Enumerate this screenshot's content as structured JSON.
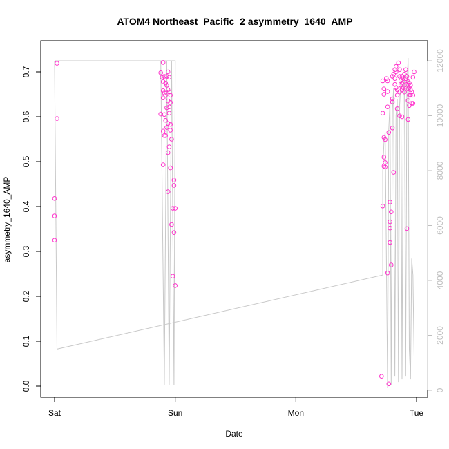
{
  "chart_data": {
    "type": "scatter",
    "title": "ATOM4 Northeast_Pacific_2 asymmetry_1640_AMP",
    "xlabel": "Date",
    "ylabel": "asymmetry_1640_AMP",
    "x_ticks": [
      "Sat",
      "Sun",
      "Mon",
      "Tue"
    ],
    "xlim": [
      0,
      3.0
    ],
    "ylim": [
      0,
      0.72
    ],
    "y_ticks": [
      "0.0",
      "0.1",
      "0.2",
      "0.3",
      "0.4",
      "0.5",
      "0.6",
      "0.7"
    ],
    "y2lim": [
      0,
      12000
    ],
    "y2_ticks": [
      "0",
      "2000",
      "4000",
      "6000",
      "8000",
      "10000",
      "12000"
    ],
    "colors": {
      "points": "#ff33cc",
      "line": "#c8c8c8",
      "right_axis": "#bfbfbf"
    },
    "series": [
      {
        "type": "points",
        "values": [
          [
            0.0,
            0.418
          ],
          [
            0.0,
            0.379
          ],
          [
            0.0,
            0.325
          ],
          [
            0.02,
            0.596
          ],
          [
            0.02,
            0.719
          ],
          [
            0.9,
            0.721
          ],
          [
            0.88,
            0.698
          ],
          [
            0.89,
            0.688
          ],
          [
            0.9,
            0.678
          ],
          [
            0.91,
            0.69
          ],
          [
            0.92,
            0.675
          ],
          [
            0.93,
            0.69
          ],
          [
            0.94,
            0.7
          ],
          [
            0.95,
            0.688
          ],
          [
            0.93,
            0.67
          ],
          [
            0.94,
            0.66
          ],
          [
            0.9,
            0.658
          ],
          [
            0.91,
            0.653
          ],
          [
            0.92,
            0.648
          ],
          [
            0.9,
            0.642
          ],
          [
            0.95,
            0.655
          ],
          [
            0.96,
            0.648
          ],
          [
            0.94,
            0.635
          ],
          [
            0.96,
            0.632
          ],
          [
            0.93,
            0.62
          ],
          [
            0.95,
            0.622
          ],
          [
            0.88,
            0.606
          ],
          [
            0.91,
            0.605
          ],
          [
            0.95,
            0.608
          ],
          [
            0.92,
            0.592
          ],
          [
            0.94,
            0.585
          ],
          [
            0.96,
            0.583
          ],
          [
            0.93,
            0.576
          ],
          [
            0.96,
            0.57
          ],
          [
            0.9,
            0.568
          ],
          [
            0.91,
            0.558
          ],
          [
            0.92,
            0.558
          ],
          [
            0.97,
            0.55
          ],
          [
            0.95,
            0.533
          ],
          [
            0.94,
            0.52
          ],
          [
            0.9,
            0.493
          ],
          [
            0.96,
            0.486
          ],
          [
            0.99,
            0.459
          ],
          [
            0.99,
            0.447
          ],
          [
            0.94,
            0.433
          ],
          [
            0.98,
            0.396
          ],
          [
            1.0,
            0.396
          ],
          [
            0.97,
            0.36
          ],
          [
            0.99,
            0.342
          ],
          [
            0.98,
            0.245
          ],
          [
            1.0,
            0.224
          ],
          [
            2.71,
            0.022
          ],
          [
            2.72,
            0.401
          ],
          [
            2.72,
            0.68
          ],
          [
            2.73,
            0.662
          ],
          [
            2.73,
            0.65
          ],
          [
            2.72,
            0.608
          ],
          [
            2.73,
            0.554
          ],
          [
            2.74,
            0.549
          ],
          [
            2.73,
            0.51
          ],
          [
            2.74,
            0.498
          ],
          [
            2.73,
            0.49
          ],
          [
            2.74,
            0.488
          ],
          [
            2.75,
            0.685
          ],
          [
            2.76,
            0.68
          ],
          [
            2.76,
            0.656
          ],
          [
            2.76,
            0.622
          ],
          [
            2.77,
            0.565
          ],
          [
            2.76,
            0.252
          ],
          [
            2.78,
            0.41
          ],
          [
            2.78,
            0.366
          ],
          [
            2.78,
            0.352
          ],
          [
            2.79,
            0.388
          ],
          [
            2.78,
            0.32
          ],
          [
            2.79,
            0.27
          ],
          [
            2.77,
            0.005
          ],
          [
            2.8,
            0.64
          ],
          [
            2.8,
            0.633
          ],
          [
            2.8,
            0.575
          ],
          [
            2.81,
            0.476
          ],
          [
            2.8,
            0.69
          ],
          [
            2.81,
            0.695
          ],
          [
            2.82,
            0.705
          ],
          [
            2.83,
            0.712
          ],
          [
            2.83,
            0.7
          ],
          [
            2.82,
            0.685
          ],
          [
            2.82,
            0.672
          ],
          [
            2.83,
            0.665
          ],
          [
            2.84,
            0.66
          ],
          [
            2.84,
            0.648
          ],
          [
            2.84,
            0.618
          ],
          [
            2.85,
            0.72
          ],
          [
            2.86,
            0.705
          ],
          [
            2.86,
            0.69
          ],
          [
            2.87,
            0.68
          ],
          [
            2.87,
            0.67
          ],
          [
            2.86,
            0.655
          ],
          [
            2.86,
            0.602
          ],
          [
            2.88,
            0.69
          ],
          [
            2.88,
            0.675
          ],
          [
            2.89,
            0.685
          ],
          [
            2.89,
            0.665
          ],
          [
            2.88,
            0.66
          ],
          [
            2.9,
            0.67
          ],
          [
            2.9,
            0.695
          ],
          [
            2.9,
            0.655
          ],
          [
            2.88,
            0.6
          ],
          [
            2.91,
            0.705
          ],
          [
            2.91,
            0.685
          ],
          [
            2.92,
            0.69
          ],
          [
            2.93,
            0.678
          ],
          [
            2.92,
            0.672
          ],
          [
            2.93,
            0.662
          ],
          [
            2.93,
            0.636
          ],
          [
            2.94,
            0.625
          ],
          [
            2.93,
            0.594
          ],
          [
            2.92,
            0.351
          ],
          [
            2.94,
            0.675
          ],
          [
            2.94,
            0.665
          ],
          [
            2.95,
            0.67
          ],
          [
            2.95,
            0.66
          ],
          [
            2.96,
            0.655
          ],
          [
            2.94,
            0.648
          ],
          [
            2.95,
            0.648
          ],
          [
            2.96,
            0.63
          ],
          [
            2.97,
            0.63
          ],
          [
            2.97,
            0.648
          ],
          [
            2.97,
            0.688
          ],
          [
            2.98,
            0.7
          ]
        ]
      },
      {
        "type": "line",
        "axis": "right",
        "values": [
          [
            0.0,
            12000
          ],
          [
            0.02,
            1500
          ],
          [
            2.72,
            4200
          ],
          [
            2.72,
            8000
          ],
          [
            2.73,
            9000
          ],
          [
            2.74,
            9400
          ],
          [
            2.75,
            5000
          ],
          [
            2.76,
            100
          ],
          [
            2.77,
            9500
          ],
          [
            2.78,
            10500
          ],
          [
            2.79,
            200
          ],
          [
            2.8,
            10200
          ],
          [
            2.81,
            11000
          ],
          [
            2.82,
            500
          ],
          [
            2.83,
            10000
          ],
          [
            2.84,
            10600
          ],
          [
            2.85,
            300
          ],
          [
            2.86,
            10400
          ],
          [
            2.87,
            11300
          ],
          [
            2.88,
            400
          ],
          [
            2.89,
            10800
          ],
          [
            2.9,
            11500
          ],
          [
            2.91,
            500
          ],
          [
            2.92,
            11000
          ],
          [
            2.93,
            12100
          ],
          [
            2.94,
            1500
          ],
          [
            2.95,
            400
          ],
          [
            2.96,
            4800
          ],
          [
            2.97,
            4200
          ],
          [
            2.98,
            1200
          ]
        ]
      },
      {
        "type": "line",
        "axis": "right",
        "values": [
          [
            0.0,
            12000
          ],
          [
            1.0,
            12000
          ],
          [
            0.99,
            200
          ],
          [
            0.97,
            12000
          ],
          [
            0.95,
            200
          ],
          [
            0.93,
            12000
          ],
          [
            0.91,
            200
          ],
          [
            0.88,
            12000
          ]
        ]
      }
    ]
  }
}
